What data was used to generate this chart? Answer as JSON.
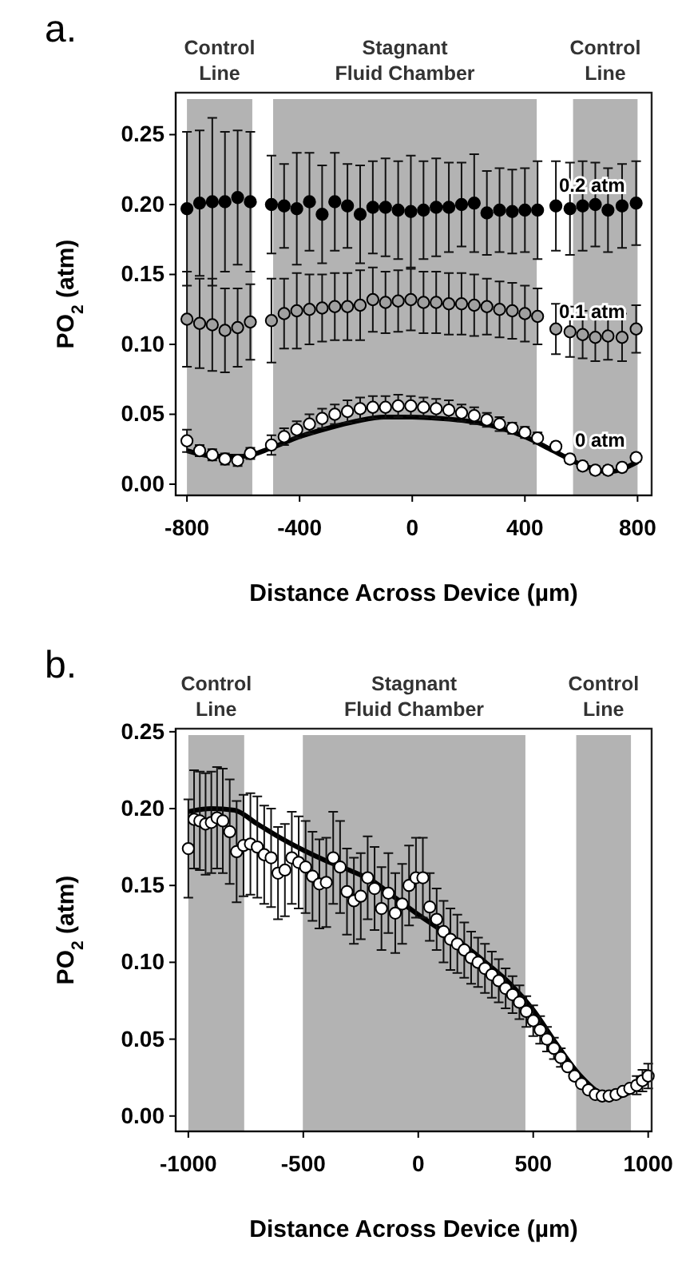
{
  "chart_data": [
    {
      "type": "scatter",
      "title": "a.",
      "xlabel": "Distance Across Device (µm)",
      "ylabel": "PO$_{2}$ (atm)",
      "xlim": [
        -840,
        850
      ],
      "ylim": [
        -0.008,
        0.28
      ],
      "xticks": [
        -800,
        -400,
        0,
        400,
        800
      ],
      "yticks": [
        {
          "value": 0,
          "label": "0.00"
        },
        {
          "value": 0.05,
          "label": "0.05"
        },
        {
          "value": 0.1,
          "label": "0.10"
        },
        {
          "value": 0.15,
          "label": "0.15"
        },
        {
          "value": 0.2,
          "label": "0.20"
        },
        {
          "value": 0.25,
          "label": "0.25"
        }
      ],
      "marker": "circle",
      "grid": false,
      "bands": [
        {
          "axis": "x",
          "from": -800,
          "to": -568,
          "label": "Control Line",
          "color": "#b3b3b3"
        },
        {
          "axis": "x",
          "from": -494,
          "to": 442,
          "label": "Stagnant Fluid Chamber",
          "color": "#b3b3b3"
        },
        {
          "axis": "x",
          "from": 571,
          "to": 800,
          "label": "Control Line",
          "color": "#b3b3b3"
        }
      ],
      "x": [
        -800,
        -755,
        -710,
        -665,
        -620,
        -575,
        -500,
        -455,
        -410,
        -365,
        -320,
        -275,
        -230,
        -185,
        -140,
        -95,
        -50,
        -5,
        40,
        85,
        130,
        175,
        220,
        265,
        310,
        355,
        400,
        445,
        510,
        560,
        605,
        650,
        695,
        745,
        795
      ],
      "series": [
        {
          "name": "0.2 atm",
          "color": "#000000",
          "values": [
            0.197,
            0.201,
            0.202,
            0.202,
            0.205,
            0.202,
            0.2,
            0.199,
            0.197,
            0.202,
            0.193,
            0.202,
            0.199,
            0.193,
            0.198,
            0.198,
            0.196,
            0.195,
            0.196,
            0.198,
            0.198,
            0.2,
            0.201,
            0.194,
            0.196,
            0.195,
            0.196,
            0.196,
            0.199,
            0.197,
            0.199,
            0.2,
            0.196,
            0.199,
            0.201
          ],
          "errors": [
            0.055,
            0.052,
            0.06,
            0.05,
            0.048,
            0.05,
            0.035,
            0.03,
            0.04,
            0.035,
            0.035,
            0.035,
            0.03,
            0.035,
            0.033,
            0.035,
            0.035,
            0.04,
            0.035,
            0.035,
            0.032,
            0.03,
            0.035,
            0.03,
            0.03,
            0.03,
            0.03,
            0.035,
            0.032,
            0.033,
            0.032,
            0.03,
            0.03,
            0.03,
            0.03
          ]
        },
        {
          "name": "0.1 atm",
          "color": "#a0a0a0",
          "values": [
            0.118,
            0.115,
            0.114,
            0.11,
            0.112,
            0.116,
            0.117,
            0.122,
            0.124,
            0.125,
            0.126,
            0.127,
            0.127,
            0.128,
            0.132,
            0.13,
            0.131,
            0.132,
            0.13,
            0.13,
            0.129,
            0.129,
            0.128,
            0.127,
            0.125,
            0.124,
            0.122,
            0.12,
            0.111,
            0.109,
            0.107,
            0.105,
            0.106,
            0.105,
            0.111
          ],
          "errors": [
            0.034,
            0.032,
            0.033,
            0.03,
            0.028,
            0.027,
            0.03,
            0.025,
            0.027,
            0.025,
            0.024,
            0.024,
            0.024,
            0.025,
            0.023,
            0.022,
            0.022,
            0.022,
            0.022,
            0.022,
            0.022,
            0.022,
            0.022,
            0.02,
            0.02,
            0.02,
            0.02,
            0.02,
            0.018,
            0.018,
            0.017,
            0.017,
            0.017,
            0.017,
            0.017
          ]
        },
        {
          "name": "0 atm",
          "color": "#ffffff",
          "values": [
            0.031,
            0.024,
            0.021,
            0.018,
            0.017,
            0.022,
            0.028,
            0.034,
            0.039,
            0.043,
            0.047,
            0.05,
            0.052,
            0.054,
            0.055,
            0.055,
            0.056,
            0.056,
            0.055,
            0.054,
            0.053,
            0.051,
            0.049,
            0.046,
            0.043,
            0.04,
            0.037,
            0.033,
            0.027,
            0.018,
            0.013,
            0.01,
            0.01,
            0.012,
            0.019
          ],
          "errors": [
            0.008,
            0.004,
            0.004,
            0.004,
            0.004,
            0.004,
            0.007,
            0.006,
            0.006,
            0.007,
            0.007,
            0.007,
            0.008,
            0.008,
            0.008,
            0.008,
            0.008,
            0.007,
            0.007,
            0.007,
            0.007,
            0.006,
            0.006,
            0.005,
            0.005,
            0.004,
            0.004,
            0.004,
            0.003,
            0.003,
            0.003,
            0.003,
            0.003,
            0.003,
            0.003
          ]
        },
        {
          "type": "line",
          "color": "#000000",
          "marker": "none",
          "x": [
            -800,
            -700,
            -600,
            -500,
            -400,
            -300,
            -200,
            -100,
            0,
            100,
            200,
            300,
            400,
            500,
            600,
            700,
            800
          ],
          "values": [
            0.024,
            0.02,
            0.02,
            0.026,
            0.034,
            0.04,
            0.045,
            0.048,
            0.048,
            0.047,
            0.045,
            0.041,
            0.034,
            0.024,
            0.014,
            0.009,
            0.016
          ]
        }
      ]
    },
    {
      "type": "scatter",
      "title": "b.",
      "xlabel": "Distance Across Device (µm)",
      "ylabel": "PO$_{2}$ (atm)",
      "xlim": [
        -1055,
        1015
      ],
      "ylim": [
        -0.01,
        0.252
      ],
      "xticks": [
        -1000,
        -500,
        0,
        500,
        1000
      ],
      "yticks": [
        {
          "value": 0,
          "label": "0.00"
        },
        {
          "value": 0.05,
          "label": "0.05"
        },
        {
          "value": 0.1,
          "label": "0.10"
        },
        {
          "value": 0.15,
          "label": "0.15"
        },
        {
          "value": 0.2,
          "label": "0.20"
        },
        {
          "value": 0.25,
          "label": "0.25"
        }
      ],
      "marker": "circle",
      "grid": false,
      "bands": [
        {
          "axis": "x",
          "from": -1000,
          "to": -757,
          "label": "Control Line",
          "color": "#b3b3b3"
        },
        {
          "axis": "x",
          "from": -502,
          "to": 466,
          "label": "Stagnant Fluid Chamber",
          "color": "#b3b3b3"
        },
        {
          "axis": "x",
          "from": 687,
          "to": 925,
          "label": "Control Line",
          "color": "#b3b3b3"
        }
      ],
      "x": [
        -1000,
        -975,
        -950,
        -925,
        -900,
        -875,
        -850,
        -820,
        -790,
        -760,
        -730,
        -700,
        -670,
        -640,
        -610,
        -580,
        -550,
        -520,
        -490,
        -460,
        -430,
        -400,
        -370,
        -340,
        -310,
        -280,
        -250,
        -220,
        -190,
        -160,
        -130,
        -100,
        -70,
        -40,
        -10,
        20,
        50,
        80,
        110,
        140,
        170,
        200,
        230,
        260,
        290,
        320,
        350,
        380,
        410,
        440,
        470,
        500,
        530,
        560,
        590,
        620,
        650,
        680,
        710,
        740,
        770,
        800,
        830,
        860,
        890,
        920,
        950,
        975,
        1000
      ],
      "series": [
        {
          "color": "#ffffff",
          "values": [
            0.174,
            0.193,
            0.192,
            0.19,
            0.191,
            0.194,
            0.192,
            0.185,
            0.172,
            0.176,
            0.177,
            0.175,
            0.17,
            0.168,
            0.158,
            0.16,
            0.168,
            0.165,
            0.162,
            0.156,
            0.151,
            0.152,
            0.168,
            0.162,
            0.146,
            0.14,
            0.143,
            0.155,
            0.148,
            0.135,
            0.145,
            0.132,
            0.138,
            0.15,
            0.155,
            0.155,
            0.136,
            0.128,
            0.12,
            0.115,
            0.112,
            0.108,
            0.103,
            0.1,
            0.096,
            0.092,
            0.088,
            0.083,
            0.079,
            0.074,
            0.068,
            0.062,
            0.056,
            0.05,
            0.044,
            0.038,
            0.032,
            0.026,
            0.021,
            0.017,
            0.014,
            0.013,
            0.013,
            0.014,
            0.016,
            0.018,
            0.02,
            0.023,
            0.026
          ],
          "errors": [
            0.032,
            0.032,
            0.032,
            0.033,
            0.033,
            0.033,
            0.034,
            0.034,
            0.033,
            0.033,
            0.033,
            0.033,
            0.032,
            0.032,
            0.03,
            0.03,
            0.03,
            0.03,
            0.03,
            0.029,
            0.029,
            0.029,
            0.03,
            0.03,
            0.028,
            0.028,
            0.028,
            0.027,
            0.027,
            0.027,
            0.026,
            0.026,
            0.026,
            0.026,
            0.026,
            0.026,
            0.022,
            0.02,
            0.02,
            0.02,
            0.019,
            0.018,
            0.017,
            0.016,
            0.016,
            0.015,
            0.014,
            0.013,
            0.012,
            0.011,
            0.01,
            0.01,
            0.009,
            0.008,
            0.007,
            0.006,
            null,
            null,
            null,
            null,
            null,
            null,
            null,
            null,
            null,
            null,
            0.006,
            0.007,
            0.008
          ]
        },
        {
          "type": "line",
          "color": "#000000",
          "marker": "none",
          "x": [
            -1000,
            -900,
            -800,
            -700,
            -600,
            -500,
            -400,
            -300,
            -200,
            -100,
            0,
            100,
            200,
            300,
            400,
            500,
            600,
            700,
            800,
            850,
            900,
            950,
            1000
          ],
          "values": [
            0.198,
            0.2,
            0.199,
            0.19,
            0.181,
            0.173,
            0.166,
            0.16,
            0.153,
            0.142,
            0.131,
            0.121,
            0.111,
            0.099,
            0.086,
            0.069,
            0.047,
            0.027,
            0.014,
            0.012,
            0.014,
            0.018,
            0.024
          ]
        }
      ]
    }
  ]
}
